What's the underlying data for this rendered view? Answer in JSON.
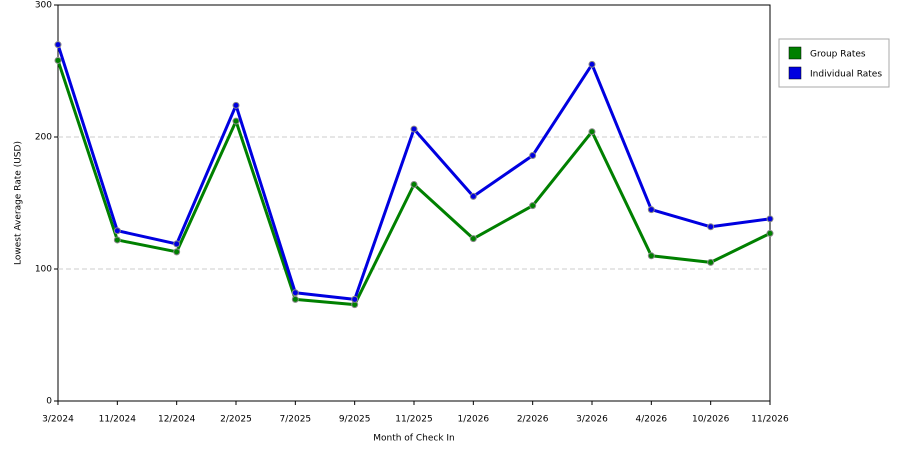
{
  "chart_data": {
    "type": "line",
    "x_label": "Month of Check In",
    "y_label": "Lowest Average Rate (USD)",
    "categories": [
      "3/2024",
      "11/2024",
      "12/2024",
      "2/2025",
      "7/2025",
      "9/2025",
      "11/2025",
      "1/2026",
      "2/2026",
      "3/2026",
      "4/2026",
      "10/2026",
      "11/2026"
    ],
    "series": [
      {
        "name": "Group Rates",
        "color": "#008000",
        "values": [
          258,
          122,
          113,
          212,
          77,
          73,
          164,
          123,
          148,
          204,
          110,
          105,
          127
        ]
      },
      {
        "name": "Individual Rates",
        "color": "#0000e0",
        "values": [
          270,
          129,
          119,
          224,
          82,
          77,
          206,
          155,
          186,
          255,
          145,
          132,
          138
        ]
      }
    ],
    "ylim": [
      0,
      300
    ],
    "yticks": [
      0,
      100,
      200,
      300
    ],
    "grid": true,
    "legend": "upper right"
  }
}
